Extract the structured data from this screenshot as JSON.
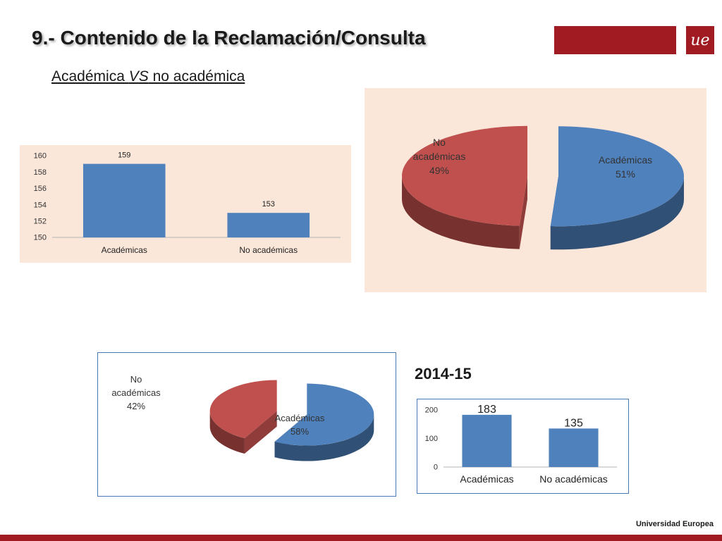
{
  "header": {
    "title": "9.- Contenido de la Reclamación/Consulta",
    "logo_text": "ue",
    "subtitle_prefix": "Académica ",
    "subtitle_vs": "VS",
    "subtitle_suffix": " no académica"
  },
  "section_label": "2014-15",
  "footer": {
    "brand": "Universidad Europea"
  },
  "colors": {
    "brand": "#a01c22",
    "blue": "#4f81bd",
    "red": "#c0504d",
    "panel": "#fbe7da",
    "border": "#4a78b8"
  },
  "chart_data": [
    {
      "type": "bar",
      "categories": [
        "Académicas",
        "No académicas"
      ],
      "values": [
        159,
        153
      ],
      "ylim": [
        150,
        160
      ],
      "yticks": [
        "150",
        "152",
        "154",
        "156",
        "158",
        "160"
      ],
      "data_labels": [
        "159",
        "153"
      ],
      "grid": false
    },
    {
      "type": "pie",
      "labels": [
        "Académicas",
        "No académicas"
      ],
      "values": [
        51,
        49
      ],
      "label_lines": [
        [
          "Académicas",
          "51%"
        ],
        [
          "No",
          "académicas",
          "49%"
        ]
      ]
    },
    {
      "type": "pie",
      "labels": [
        "Académicas",
        "No académicas"
      ],
      "values": [
        58,
        42
      ],
      "label_lines": [
        [
          "Académicas",
          "58%"
        ],
        [
          "No",
          "académicas",
          "42%"
        ]
      ]
    },
    {
      "type": "bar",
      "title": "2014-15",
      "categories": [
        "Académicas",
        "No académicas"
      ],
      "values": [
        183,
        135
      ],
      "ylim": [
        0,
        200
      ],
      "yticks": [
        "0",
        "100",
        "200"
      ],
      "data_labels": [
        "183",
        "135"
      ],
      "grid": false
    }
  ]
}
